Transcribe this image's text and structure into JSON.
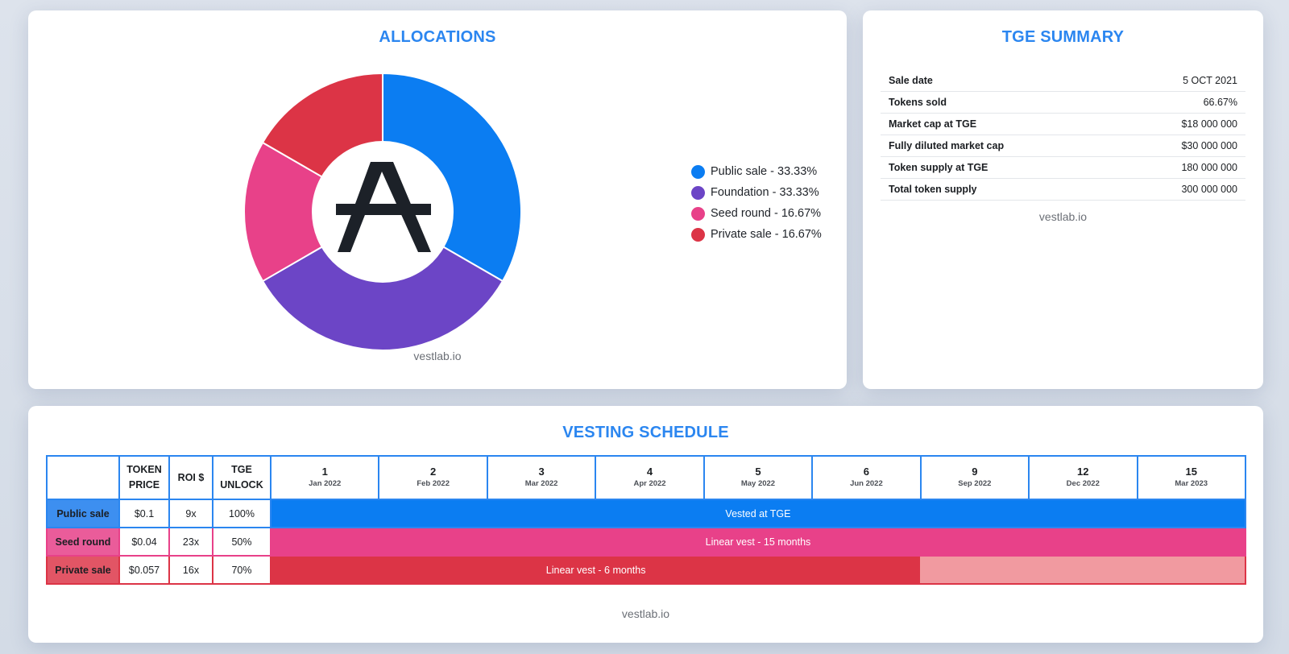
{
  "allocations": {
    "title": "ALLOCATIONS",
    "watermark": "vestlab.io",
    "logo_icon": "aleph-zero-logo"
  },
  "chart_data": {
    "type": "pie",
    "variant": "donut",
    "title": "ALLOCATIONS",
    "categories": [
      "Public sale",
      "Foundation",
      "Seed round",
      "Private sale"
    ],
    "values": [
      33.33,
      33.33,
      16.67,
      16.67
    ],
    "colors": [
      "#0b7df2",
      "#6c45c6",
      "#e84189",
      "#dc3446"
    ],
    "legend_labels": [
      "Public sale - 33.33%",
      "Foundation - 33.33%",
      "Seed round - 16.67%",
      "Private sale - 16.67%"
    ],
    "legend_position": "right"
  },
  "tge": {
    "title": "TGE SUMMARY",
    "watermark": "vestlab.io",
    "rows": [
      {
        "label": "Sale date",
        "value": "5 OCT 2021"
      },
      {
        "label": "Tokens sold",
        "value": "66.67%"
      },
      {
        "label": "Market cap at TGE",
        "value": "$18 000 000"
      },
      {
        "label": "Fully diluted market cap",
        "value": "$30 000 000"
      },
      {
        "label": "Token supply at TGE",
        "value": "180 000 000"
      },
      {
        "label": "Total token supply",
        "value": "300 000 000"
      }
    ]
  },
  "vesting": {
    "title": "VESTING SCHEDULE",
    "watermark": "vestlab.io",
    "headers": {
      "price": "TOKEN PRICE",
      "roi": "ROI $",
      "unlock": "TGE UNLOCK"
    },
    "months": [
      {
        "num": "1",
        "date": "Jan 2022"
      },
      {
        "num": "2",
        "date": "Feb 2022"
      },
      {
        "num": "3",
        "date": "Mar 2022"
      },
      {
        "num": "4",
        "date": "Apr 2022"
      },
      {
        "num": "5",
        "date": "May 2022"
      },
      {
        "num": "6",
        "date": "Jun 2022"
      },
      {
        "num": "9",
        "date": "Sep 2022"
      },
      {
        "num": "12",
        "date": "Dec 2022"
      },
      {
        "num": "15",
        "date": "Mar 2023"
      }
    ],
    "rows": [
      {
        "name": "Public sale",
        "price": "$0.1",
        "roi": "9x",
        "unlock": "100%",
        "label": "Vested at TGE",
        "color": "#0b7df2",
        "name_bg": "#3d8ff0",
        "border": "#2b86f0",
        "active_months": 9,
        "tail_color": ""
      },
      {
        "name": "Seed round",
        "price": "$0.04",
        "roi": "23x",
        "unlock": "50%",
        "label": "Linear vest - 15 months",
        "color": "#e84189",
        "name_bg": "#ea5c9a",
        "border": "#e84189",
        "active_months": 9,
        "tail_color": ""
      },
      {
        "name": "Private sale",
        "price": "$0.057",
        "roi": "16x",
        "unlock": "70%",
        "label": "Linear vest - 6 months",
        "color": "#dc3446",
        "name_bg": "#e25565",
        "border": "#dc3446",
        "active_months": 6,
        "tail_color": "#f19aa0"
      }
    ]
  }
}
